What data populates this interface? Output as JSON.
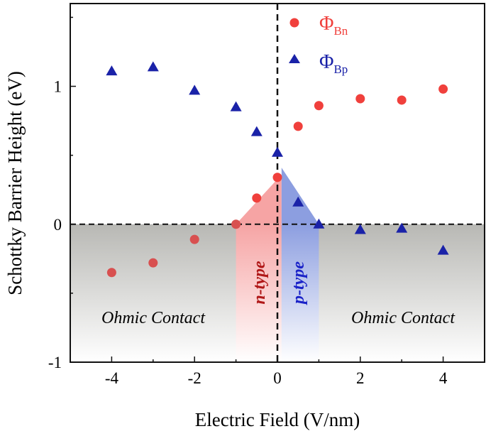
{
  "chart_data": {
    "type": "scatter",
    "xlabel": "Electric Field (V/nm)",
    "ylabel": "Schottky Barrier Height (eV)",
    "xlim": [
      -5,
      5
    ],
    "ylim": [
      -1,
      1.6
    ],
    "xticks": [
      -4,
      -2,
      0,
      2,
      4
    ],
    "yticks": [
      -1,
      0,
      1
    ],
    "x_minor_step": 1,
    "y_minor_step": 0.5,
    "grid": false,
    "legend_placement": "top-center",
    "series": [
      {
        "name": "Φ",
        "subscript": "Bn",
        "marker": "circle",
        "color": "#f0403c",
        "x": [
          -4,
          -3,
          -2,
          -1,
          -0.5,
          0,
          0.5,
          1,
          2,
          3,
          4
        ],
        "y": [
          -0.35,
          -0.28,
          -0.11,
          0.0,
          0.19,
          0.34,
          0.71,
          0.86,
          0.91,
          0.9,
          0.98
        ]
      },
      {
        "name": "Φ",
        "subscript": "Bp",
        "marker": "triangle",
        "color": "#1a22a8",
        "x": [
          -4,
          -3,
          -2,
          -1,
          -0.5,
          0,
          0.5,
          1,
          2,
          3,
          4
        ],
        "y": [
          1.11,
          1.14,
          0.97,
          0.85,
          0.67,
          0.52,
          0.16,
          0.0,
          -0.04,
          -0.03,
          -0.19
        ]
      }
    ],
    "reference_lines": {
      "x": 0,
      "y": 0
    },
    "regions": [
      {
        "label": "Ohmic Contact",
        "x_range": [
          -5,
          -1
        ],
        "color": "#b8b8b4"
      },
      {
        "label": "n-type",
        "x_range": [
          -1,
          0.1
        ],
        "color": "#f4a0a0",
        "label_color": "#b01818"
      },
      {
        "label": "p-type",
        "x_range": [
          0.1,
          1
        ],
        "color": "#8c9ee0",
        "label_color": "#1a22c8"
      },
      {
        "label": "Ohmic Contact",
        "x_range": [
          1,
          5
        ],
        "color": "#b8b8b4"
      }
    ]
  }
}
